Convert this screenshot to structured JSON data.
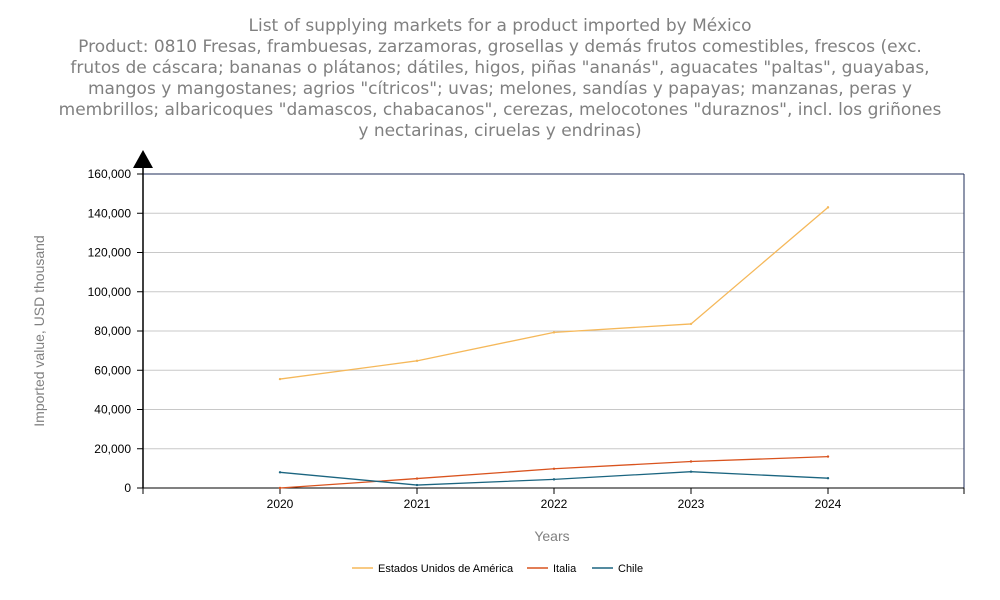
{
  "chart_data": {
    "type": "line",
    "title_lines": [
      "List of supplying markets for a product imported by México",
      "Product: 0810 Fresas, frambuesas, zarzamoras, grosellas y demás frutos comestibles, frescos (exc.",
      "frutos de cáscara; bananas o plátanos; dátiles, higos, piñas \"ananás\", aguacates \"paltas\", guayabas,",
      "mangos y mangostanes; agrios \"cítricos\"; uvas; melones, sandías y papayas; manzanas, peras y",
      "membrillos; albaricoques \"damascos, chabacanos\", cerezas, melocotones \"duraznos\", incl. los griñones",
      "y nectarinas, ciruelas y endrinas)"
    ],
    "xlabel": "Years",
    "ylabel": "Imported value, USD thousand",
    "x": [
      "2020",
      "2021",
      "2022",
      "2023",
      "2024"
    ],
    "ylim": [
      0,
      160000
    ],
    "yticks": [
      "0",
      "20,000",
      "40,000",
      "60,000",
      "80,000",
      "100,000",
      "120,000",
      "140,000",
      "160,000"
    ],
    "grid": true,
    "legend_position": "bottom-center",
    "series": [
      {
        "name": "Estados Unidos de América",
        "color": "#f5b85a",
        "values": [
          55500,
          64800,
          79300,
          83600,
          143000
        ]
      },
      {
        "name": "Italia",
        "color": "#d9531e",
        "values": [
          0,
          4800,
          9800,
          13500,
          16000
        ]
      },
      {
        "name": "Chile",
        "color": "#1b6580",
        "values": [
          8000,
          1500,
          4400,
          8300,
          5000
        ]
      }
    ]
  }
}
